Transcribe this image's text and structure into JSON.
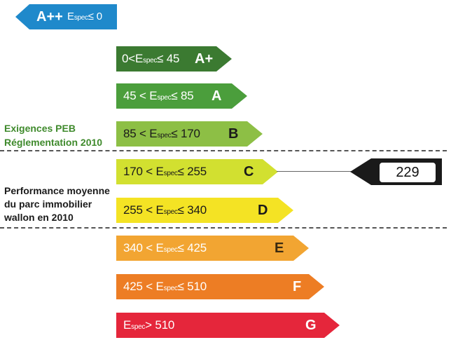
{
  "espec_symbol": "E",
  "espec_subscript": "spec",
  "bands": [
    {
      "grade": "A++",
      "range_prefix": "",
      "range_suffix": "≤ 0",
      "color": "#1f89cb",
      "text_color": "#ffffff",
      "grade_color": "#ffffff"
    },
    {
      "grade": "A+",
      "range_prefix": "0<",
      "range_suffix": "≤ 45",
      "color": "#3b7a31",
      "text_color": "#ffffff",
      "grade_color": "#ffffff"
    },
    {
      "grade": "A",
      "range_prefix": "45 <",
      "range_suffix": "≤ 85",
      "color": "#4b9e3c",
      "text_color": "#ffffff",
      "grade_color": "#ffffff"
    },
    {
      "grade": "B",
      "range_prefix": "85 <",
      "range_suffix": "≤ 170",
      "color": "#8dbf45",
      "text_color": "#1a1a1a",
      "grade_color": "#1a1a1a"
    },
    {
      "grade": "C",
      "range_prefix": "170 <",
      "range_suffix": "≤ 255",
      "color": "#d2e030",
      "text_color": "#1a1a1a",
      "grade_color": "#1a1a1a"
    },
    {
      "grade": "D",
      "range_prefix": "255 <",
      "range_suffix": "≤ 340",
      "color": "#f4e324",
      "text_color": "#1a1a1a",
      "grade_color": "#1a1a1a"
    },
    {
      "grade": "E",
      "range_prefix": "340 <",
      "range_suffix": "≤ 425",
      "color": "#f2a532",
      "text_color": "#ffffff",
      "grade_color": "#3a2a10"
    },
    {
      "grade": "F",
      "range_prefix": "425 <",
      "range_suffix": "≤ 510",
      "color": "#ed7d24",
      "text_color": "#ffffff",
      "grade_color": "#ffffff"
    },
    {
      "grade": "G",
      "range_prefix": "",
      "range_suffix": "> 510",
      "color": "#e5263b",
      "text_color": "#ffffff",
      "grade_color": "#ffffff"
    }
  ],
  "labels": {
    "exigences_line1": "Exigences PEB",
    "exigences_line2": "Réglementation 2010",
    "exigences_color": "#3f8a2c",
    "performance_line1": "Performance moyenne",
    "performance_line2": "du parc immobilier",
    "performance_line3": "wallon en 2010",
    "performance_color": "#1a1a1a"
  },
  "indicator": {
    "value": "229",
    "pointed_grade": "C",
    "arrow_color": "#1a1a1a"
  }
}
